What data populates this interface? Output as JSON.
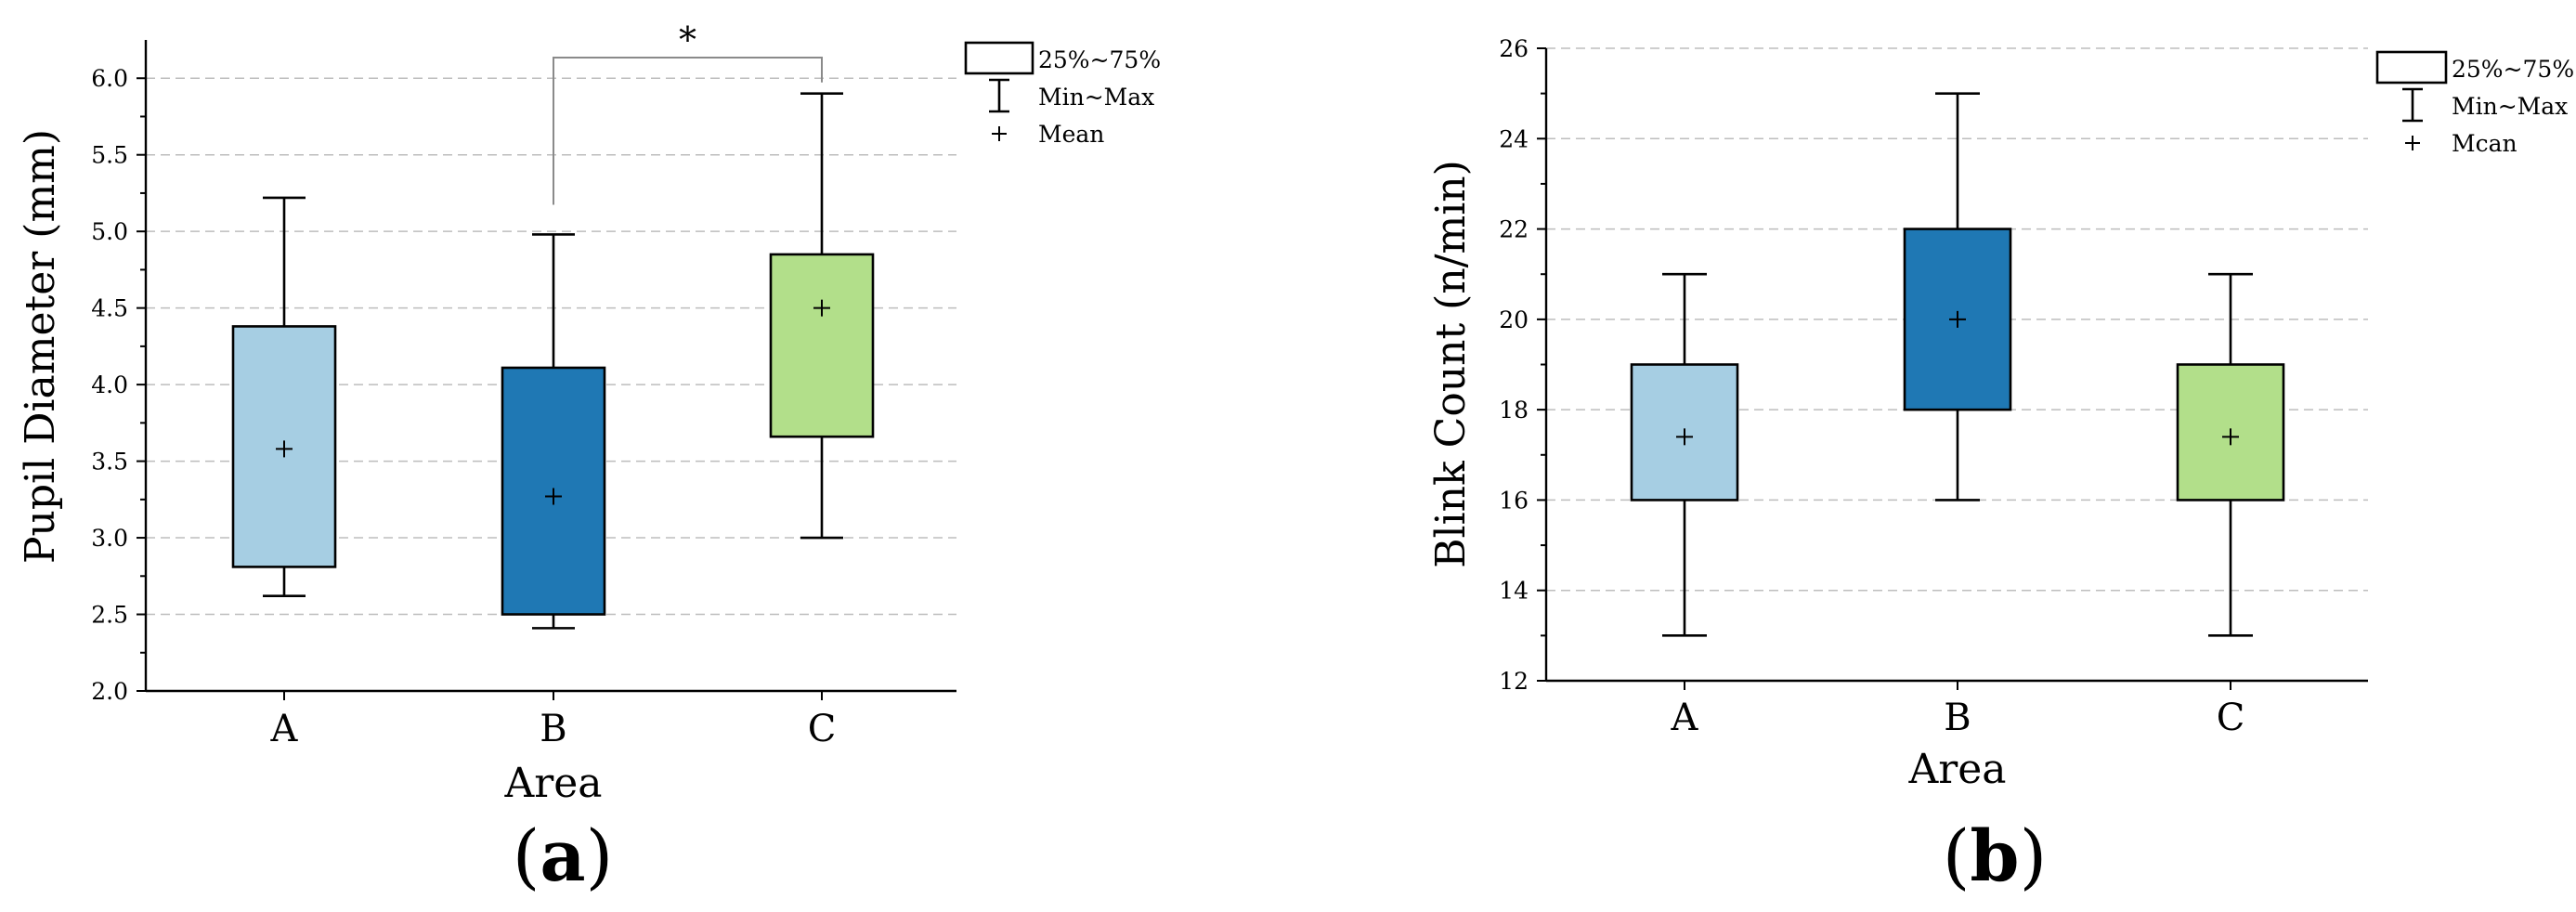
{
  "chart_data": [
    {
      "type": "boxplot",
      "panel_label": "a",
      "xlabel": "Area",
      "ylabel": "Pupil Diameter (mm)",
      "categories": [
        "A",
        "B",
        "C"
      ],
      "ylim": [
        2.0,
        6.25
      ],
      "yticks": [
        "2.0",
        "2.5",
        "3.0",
        "3.5",
        "4.0",
        "4.5",
        "5.0",
        "5.5",
        "6.0"
      ],
      "grid": true,
      "colors": [
        "#a6cee3",
        "#1f78b4",
        "#b2df8a"
      ],
      "boxes": [
        {
          "category": "A",
          "min": 2.62,
          "q1": 2.81,
          "q3": 4.38,
          "max": 5.22,
          "mean": 3.58
        },
        {
          "category": "B",
          "min": 2.41,
          "q1": 2.5,
          "q3": 4.11,
          "max": 4.98,
          "mean": 3.27
        },
        {
          "category": "C",
          "min": 3.0,
          "q1": 3.66,
          "q3": 4.85,
          "max": 5.9,
          "mean": 4.5
        }
      ],
      "significance": {
        "from": "B",
        "to": "C",
        "label": "*"
      },
      "legend": {
        "placement": "top-right",
        "box": "25%~75%",
        "whisker": "Min~Max",
        "mean": "Mean"
      }
    },
    {
      "type": "boxplot",
      "panel_label": "b",
      "xlabel": "Area",
      "ylabel": "Blink Count (n/min)",
      "categories": [
        "A",
        "B",
        "C"
      ],
      "ylim": [
        12,
        26
      ],
      "yticks": [
        "12",
        "14",
        "16",
        "18",
        "20",
        "22",
        "24",
        "26"
      ],
      "grid": true,
      "colors": [
        "#a6cee3",
        "#1f78b4",
        "#b2df8a"
      ],
      "boxes": [
        {
          "category": "A",
          "min": 13,
          "q1": 16,
          "q3": 19,
          "max": 21,
          "mean": 17.4
        },
        {
          "category": "B",
          "min": 16,
          "q1": 18,
          "q3": 22,
          "max": 25,
          "mean": 20.0
        },
        {
          "category": "C",
          "min": 13,
          "q1": 16,
          "q3": 19,
          "max": 21,
          "mean": 17.4
        }
      ],
      "legend": {
        "placement": "top-right",
        "box": "25%~75%",
        "whisker": "Min~Max",
        "mean": "Mcan"
      }
    }
  ]
}
